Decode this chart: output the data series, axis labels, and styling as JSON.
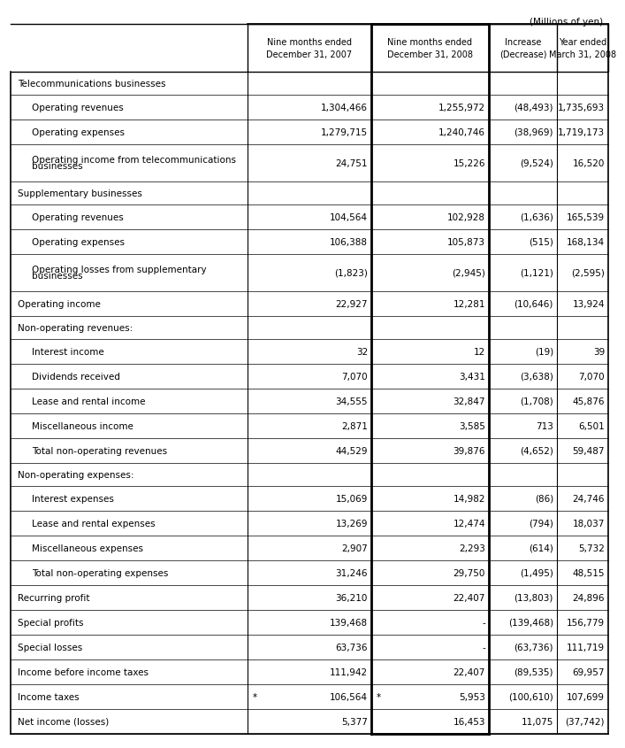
{
  "title_note": "(Millions of yen)",
  "col_headers": [
    [
      "Nine months ended",
      "December 31, 2007"
    ],
    [
      "Nine months ended",
      "December 31, 2008"
    ],
    [
      "Increase",
      "(Decrease)"
    ],
    [
      "Year ended",
      "March 31, 2008"
    ]
  ],
  "rows": [
    {
      "label": "Telecommunications businesses",
      "indent": 0,
      "values": [
        "",
        "",
        "",
        ""
      ],
      "section_header": true
    },
    {
      "label": "Operating revenues",
      "indent": 1,
      "values": [
        "1,304,466",
        "1,255,972",
        "(48,493)",
        "1,735,693"
      ]
    },
    {
      "label": "Operating expenses",
      "indent": 1,
      "values": [
        "1,279,715",
        "1,240,746",
        "(38,969)",
        "1,719,173"
      ]
    },
    {
      "label": "Operating income from telecommunications\nbusinesses",
      "indent": 1,
      "values": [
        "24,751",
        "15,226",
        "(9,524)",
        "16,520"
      ],
      "multiline": true
    },
    {
      "label": "Supplementary businesses",
      "indent": 0,
      "values": [
        "",
        "",
        "",
        ""
      ],
      "section_header": true
    },
    {
      "label": "Operating revenues",
      "indent": 1,
      "values": [
        "104,564",
        "102,928",
        "(1,636)",
        "165,539"
      ]
    },
    {
      "label": "Operating expenses",
      "indent": 1,
      "values": [
        "106,388",
        "105,873",
        "(515)",
        "168,134"
      ]
    },
    {
      "label": "Operating losses from supplementary\nbusinesses",
      "indent": 1,
      "values": [
        "(1,823)",
        "(2,945)",
        "(1,121)",
        "(2,595)"
      ],
      "multiline": true
    },
    {
      "label": "Operating income",
      "indent": 0,
      "values": [
        "22,927",
        "12,281",
        "(10,646)",
        "13,924"
      ]
    },
    {
      "label": "Non-operating revenues:",
      "indent": 0,
      "values": [
        "",
        "",
        "",
        ""
      ],
      "section_header": true
    },
    {
      "label": "Interest income",
      "indent": 1,
      "values": [
        "32",
        "12",
        "(19)",
        "39"
      ]
    },
    {
      "label": "Dividends received",
      "indent": 1,
      "values": [
        "7,070",
        "3,431",
        "(3,638)",
        "7,070"
      ]
    },
    {
      "label": "Lease and rental income",
      "indent": 1,
      "values": [
        "34,555",
        "32,847",
        "(1,708)",
        "45,876"
      ]
    },
    {
      "label": "Miscellaneous income",
      "indent": 1,
      "values": [
        "2,871",
        "3,585",
        "713",
        "6,501"
      ]
    },
    {
      "label": "Total non-operating revenues",
      "indent": 1,
      "values": [
        "44,529",
        "39,876",
        "(4,652)",
        "59,487"
      ]
    },
    {
      "label": "Non-operating expenses:",
      "indent": 0,
      "values": [
        "",
        "",
        "",
        ""
      ],
      "section_header": true
    },
    {
      "label": "Interest expenses",
      "indent": 1,
      "values": [
        "15,069",
        "14,982",
        "(86)",
        "24,746"
      ]
    },
    {
      "label": "Lease and rental expenses",
      "indent": 1,
      "values": [
        "13,269",
        "12,474",
        "(794)",
        "18,037"
      ]
    },
    {
      "label": "Miscellaneous expenses",
      "indent": 1,
      "values": [
        "2,907",
        "2,293",
        "(614)",
        "5,732"
      ]
    },
    {
      "label": "Total non-operating expenses",
      "indent": 1,
      "values": [
        "31,246",
        "29,750",
        "(1,495)",
        "48,515"
      ]
    },
    {
      "label": "Recurring profit",
      "indent": 0,
      "values": [
        "36,210",
        "22,407",
        "(13,803)",
        "24,896"
      ]
    },
    {
      "label": "Special profits",
      "indent": 0,
      "values": [
        "139,468",
        "-",
        "(139,468)",
        "156,779"
      ]
    },
    {
      "label": "Special losses",
      "indent": 0,
      "values": [
        "63,736",
        "-",
        "(63,736)",
        "111,719"
      ]
    },
    {
      "label": "Income before income taxes",
      "indent": 0,
      "values": [
        "111,942",
        "22,407",
        "(89,535)",
        "69,957"
      ]
    },
    {
      "label": "Income taxes",
      "indent": 0,
      "values": [
        "106,564",
        "5,953",
        "(100,610)",
        "107,699"
      ],
      "asterisk": [
        true,
        true,
        false,
        false
      ]
    },
    {
      "label": "Net income (losses)",
      "indent": 0,
      "values": [
        "5,377",
        "16,453",
        "11,075",
        "(37,742)"
      ]
    }
  ],
  "bg_color": "#ffffff",
  "line_color": "#000000",
  "text_color": "#000000"
}
